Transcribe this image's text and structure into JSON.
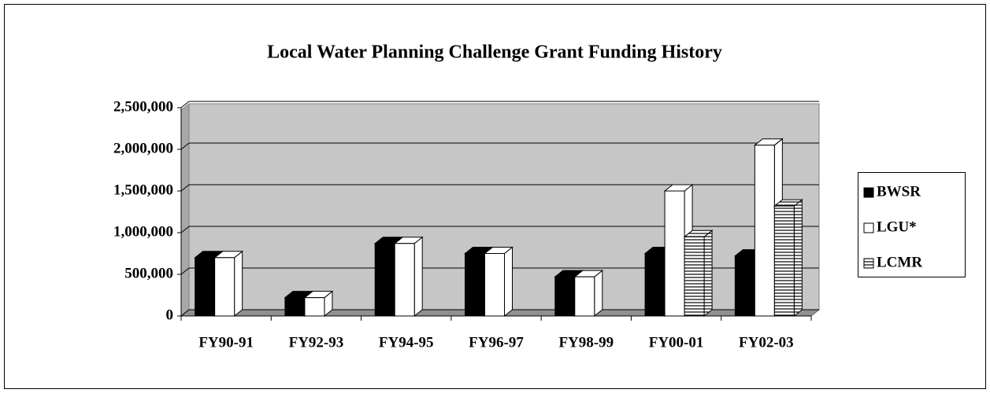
{
  "chart_data": {
    "type": "bar3d",
    "title": "Local Water Planning Challenge Grant Funding History",
    "categories": [
      "FY90-91",
      "FY92-93",
      "FY94-95",
      "FY96-97",
      "FY98-99",
      "FY00-01",
      "FY02-03"
    ],
    "series": [
      {
        "name": "BWSR",
        "color": "#000000",
        "values": [
          700000,
          220000,
          870000,
          750000,
          470000,
          750000,
          720000
        ]
      },
      {
        "name": "LGU*",
        "color": "#ffffff",
        "values": [
          700000,
          220000,
          870000,
          750000,
          470000,
          1500000,
          2050000
        ]
      },
      {
        "name": "LCMR",
        "color": "#ffffff",
        "pattern": "horizontal",
        "values": [
          null,
          null,
          null,
          null,
          null,
          950000,
          1320000
        ]
      }
    ],
    "ylim": [
      0,
      2500000
    ],
    "yticks": [
      0,
      {
        "value": 500000,
        "label": "500,000"
      },
      {
        "value": 1000000,
        "label": "1,000,000"
      },
      {
        "value": 1500000,
        "label": "1,500,000"
      },
      {
        "value": 2000000,
        "label": "2,000,000"
      },
      {
        "value": 2500000,
        "label": "2,500,000"
      }
    ],
    "grid": true,
    "legend": "right"
  }
}
